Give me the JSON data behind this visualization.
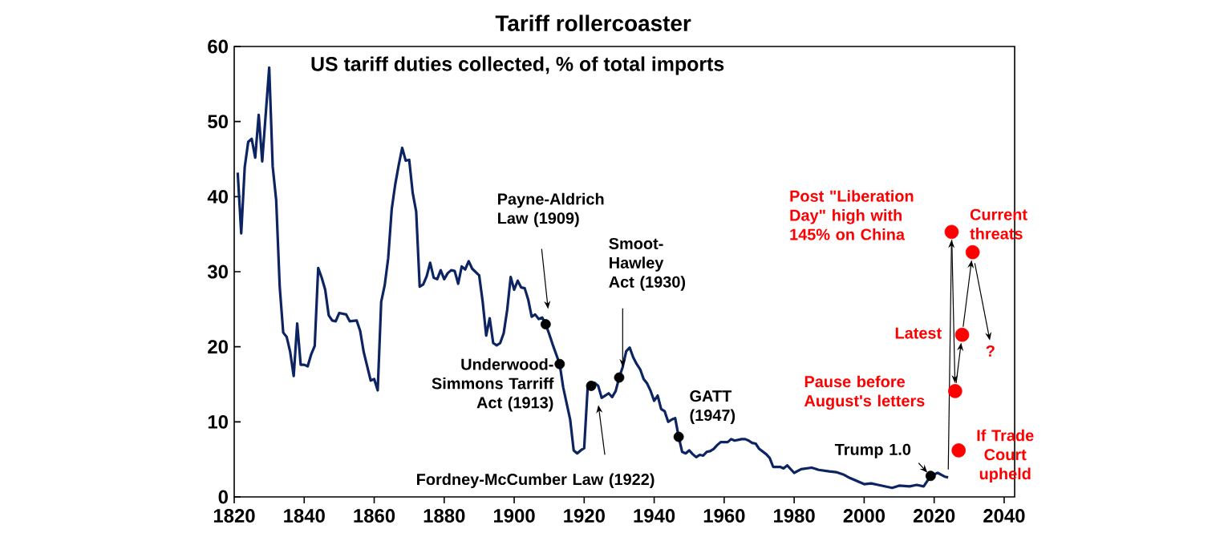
{
  "chart_data": {
    "type": "line",
    "title": "Tariff rollercoaster",
    "subtitle": "US tariff duties collected, % of total imports",
    "xlim": [
      1820,
      2043
    ],
    "ylim": [
      0,
      60
    ],
    "xticks": [
      1820,
      1840,
      1860,
      1880,
      1900,
      1920,
      1940,
      1960,
      1980,
      2000,
      2020,
      2040
    ],
    "yticks": [
      0,
      10,
      20,
      30,
      40,
      50,
      60
    ],
    "series": [
      {
        "color": "#0d2463",
        "x": [
          1821,
          1822,
          1823,
          1824,
          1825,
          1826,
          1827,
          1828,
          1830,
          1831,
          1832,
          1833,
          1834,
          1835,
          1836,
          1837,
          1838,
          1839,
          1840,
          1841,
          1842,
          1843,
          1844,
          1845,
          1846,
          1847,
          1848,
          1849,
          1850,
          1852,
          1853,
          1855,
          1856,
          1857,
          1859,
          1860,
          1861,
          1862,
          1863,
          1864,
          1865,
          1866,
          1867,
          1868,
          1869,
          1870,
          1871,
          1872,
          1873,
          1874,
          1875,
          1876,
          1877,
          1878,
          1879,
          1880,
          1881,
          1882,
          1883,
          1884,
          1885,
          1886,
          1887,
          1888,
          1890,
          1891,
          1892,
          1893,
          1894,
          1895,
          1896,
          1897,
          1898,
          1899,
          1900,
          1901,
          1902,
          1903,
          1904,
          1905,
          1906,
          1907,
          1908,
          1909,
          1910,
          1911,
          1913,
          1914,
          1916,
          1917,
          1918,
          1919,
          1920,
          1921,
          1922,
          1923,
          1924,
          1925,
          1926,
          1927,
          1928,
          1929,
          1930,
          1931,
          1932,
          1933,
          1934,
          1935,
          1936,
          1937,
          1938,
          1939,
          1940,
          1941,
          1942,
          1943,
          1944,
          1945,
          1946,
          1947,
          1948,
          1949,
          1950,
          1951,
          1952,
          1953,
          1954,
          1955,
          1956,
          1957,
          1958,
          1959,
          1961,
          1962,
          1963,
          1965,
          1966,
          1967,
          1968,
          1969,
          1970,
          1972,
          1973,
          1974,
          1976,
          1977,
          1978,
          1980,
          1982,
          1985,
          1987,
          1990,
          1992,
          1994,
          1996,
          1998,
          2000,
          2002,
          2004,
          2008,
          2010,
          2013,
          2015,
          2017,
          2019,
          2021,
          2023,
          2024
        ],
        "values": [
          43.2,
          35.1,
          43.9,
          47.3,
          47.7,
          45.2,
          50.9,
          44.7,
          57.2,
          44.0,
          39.5,
          28.0,
          21.9,
          21.3,
          19.3,
          16.1,
          23.1,
          17.6,
          17.6,
          17.4,
          19.0,
          20.1,
          30.5,
          29.2,
          27.6,
          24.2,
          23.5,
          23.4,
          24.5,
          24.3,
          23.4,
          23.5,
          22.1,
          19.3,
          15.5,
          15.7,
          14.2,
          26.0,
          28.2,
          31.8,
          38.3,
          41.6,
          44.2,
          46.5,
          44.8,
          44.9,
          40.5,
          38.0,
          28.0,
          28.3,
          29.4,
          31.2,
          29.2,
          29.0,
          30.2,
          29.0,
          29.8,
          30.2,
          30.1,
          28.4,
          30.7,
          30.3,
          31.4,
          30.4,
          29.5,
          26.0,
          21.5,
          23.8,
          20.5,
          20.2,
          20.5,
          21.8,
          24.9,
          29.3,
          27.6,
          28.8,
          27.9,
          27.8,
          26.3,
          24.0,
          24.3,
          23.7,
          23.9,
          23.0,
          21.7,
          20.3,
          17.7,
          14.6,
          10.3,
          6.2,
          5.8,
          6.2,
          6.5,
          14.6,
          14.8,
          15.2,
          14.8,
          13.2,
          13.5,
          13.8,
          13.3,
          14.1,
          15.9,
          17.3,
          19.4,
          19.9,
          18.6,
          17.7,
          17.0,
          15.7,
          15.1,
          14.1,
          12.8,
          13.5,
          11.7,
          11.4,
          10.0,
          10.3,
          10.5,
          8.0,
          6.0,
          5.8,
          6.2,
          5.7,
          5.3,
          5.6,
          5.5,
          6.0,
          6.1,
          6.4,
          6.9,
          7.3,
          7.3,
          7.7,
          7.5,
          7.7,
          7.7,
          7.5,
          7.2,
          7.1,
          6.4,
          5.7,
          5.2,
          4.0,
          4.0,
          3.8,
          4.2,
          3.2,
          3.7,
          3.9,
          3.6,
          3.4,
          3.3,
          3.0,
          2.5,
          2.1,
          1.7,
          1.8,
          1.6,
          1.2,
          1.5,
          1.4,
          1.6,
          1.4,
          2.8,
          3.2,
          2.7,
          2.6
        ]
      },
      {
        "type": "scatter",
        "color": "#000000",
        "marker": "circle",
        "x": [
          1909,
          1913,
          1922,
          1930,
          1947,
          2019
        ],
        "values": [
          23.0,
          17.7,
          14.8,
          15.9,
          8.0,
          2.8
        ]
      },
      {
        "type": "scatter",
        "color": "#ff0000",
        "marker": "circle",
        "x": [
          2025,
          2026,
          2028,
          2031
        ],
        "values": [
          35.3,
          14.1,
          21.6,
          32.6
        ]
      },
      {
        "type": "scatter",
        "color": "#ff0000",
        "marker": "circle",
        "x": [
          2027
        ],
        "values": [
          6.2
        ]
      }
    ],
    "annotations": [
      "Payne-Aldrich Law (1909)",
      {
        "text": "Underwood-Simmons Tarriff Act (1913)",
        "x": 1913,
        "y": 17.7
      },
      "Fordney-McCumber Law (1922)",
      {
        "text": "Smoot-Hawley Act (1930)",
        "x": 1931,
        "y": 17.1
      },
      {
        "text": "GATT (1947)",
        "x": 1947,
        "y": 8.0
      },
      {
        "text": "Trump 1.0",
        "x": 2019,
        "y": 2.8
      },
      {
        "text": "Post \"Liberation Day\" high with 145% on China",
        "x": 2025,
        "y": 35.3
      },
      {
        "text": "Current threats",
        "x": 2031,
        "y": 32.6
      },
      {
        "text": "Latest",
        "x": 2028,
        "y": 21.6
      },
      {
        "text": "Pause before August's letters",
        "x": 2026,
        "y": 14.1
      },
      {
        "text": "If Trade Court upheld",
        "x": 2027,
        "y": 6.2
      },
      "?"
    ]
  }
}
